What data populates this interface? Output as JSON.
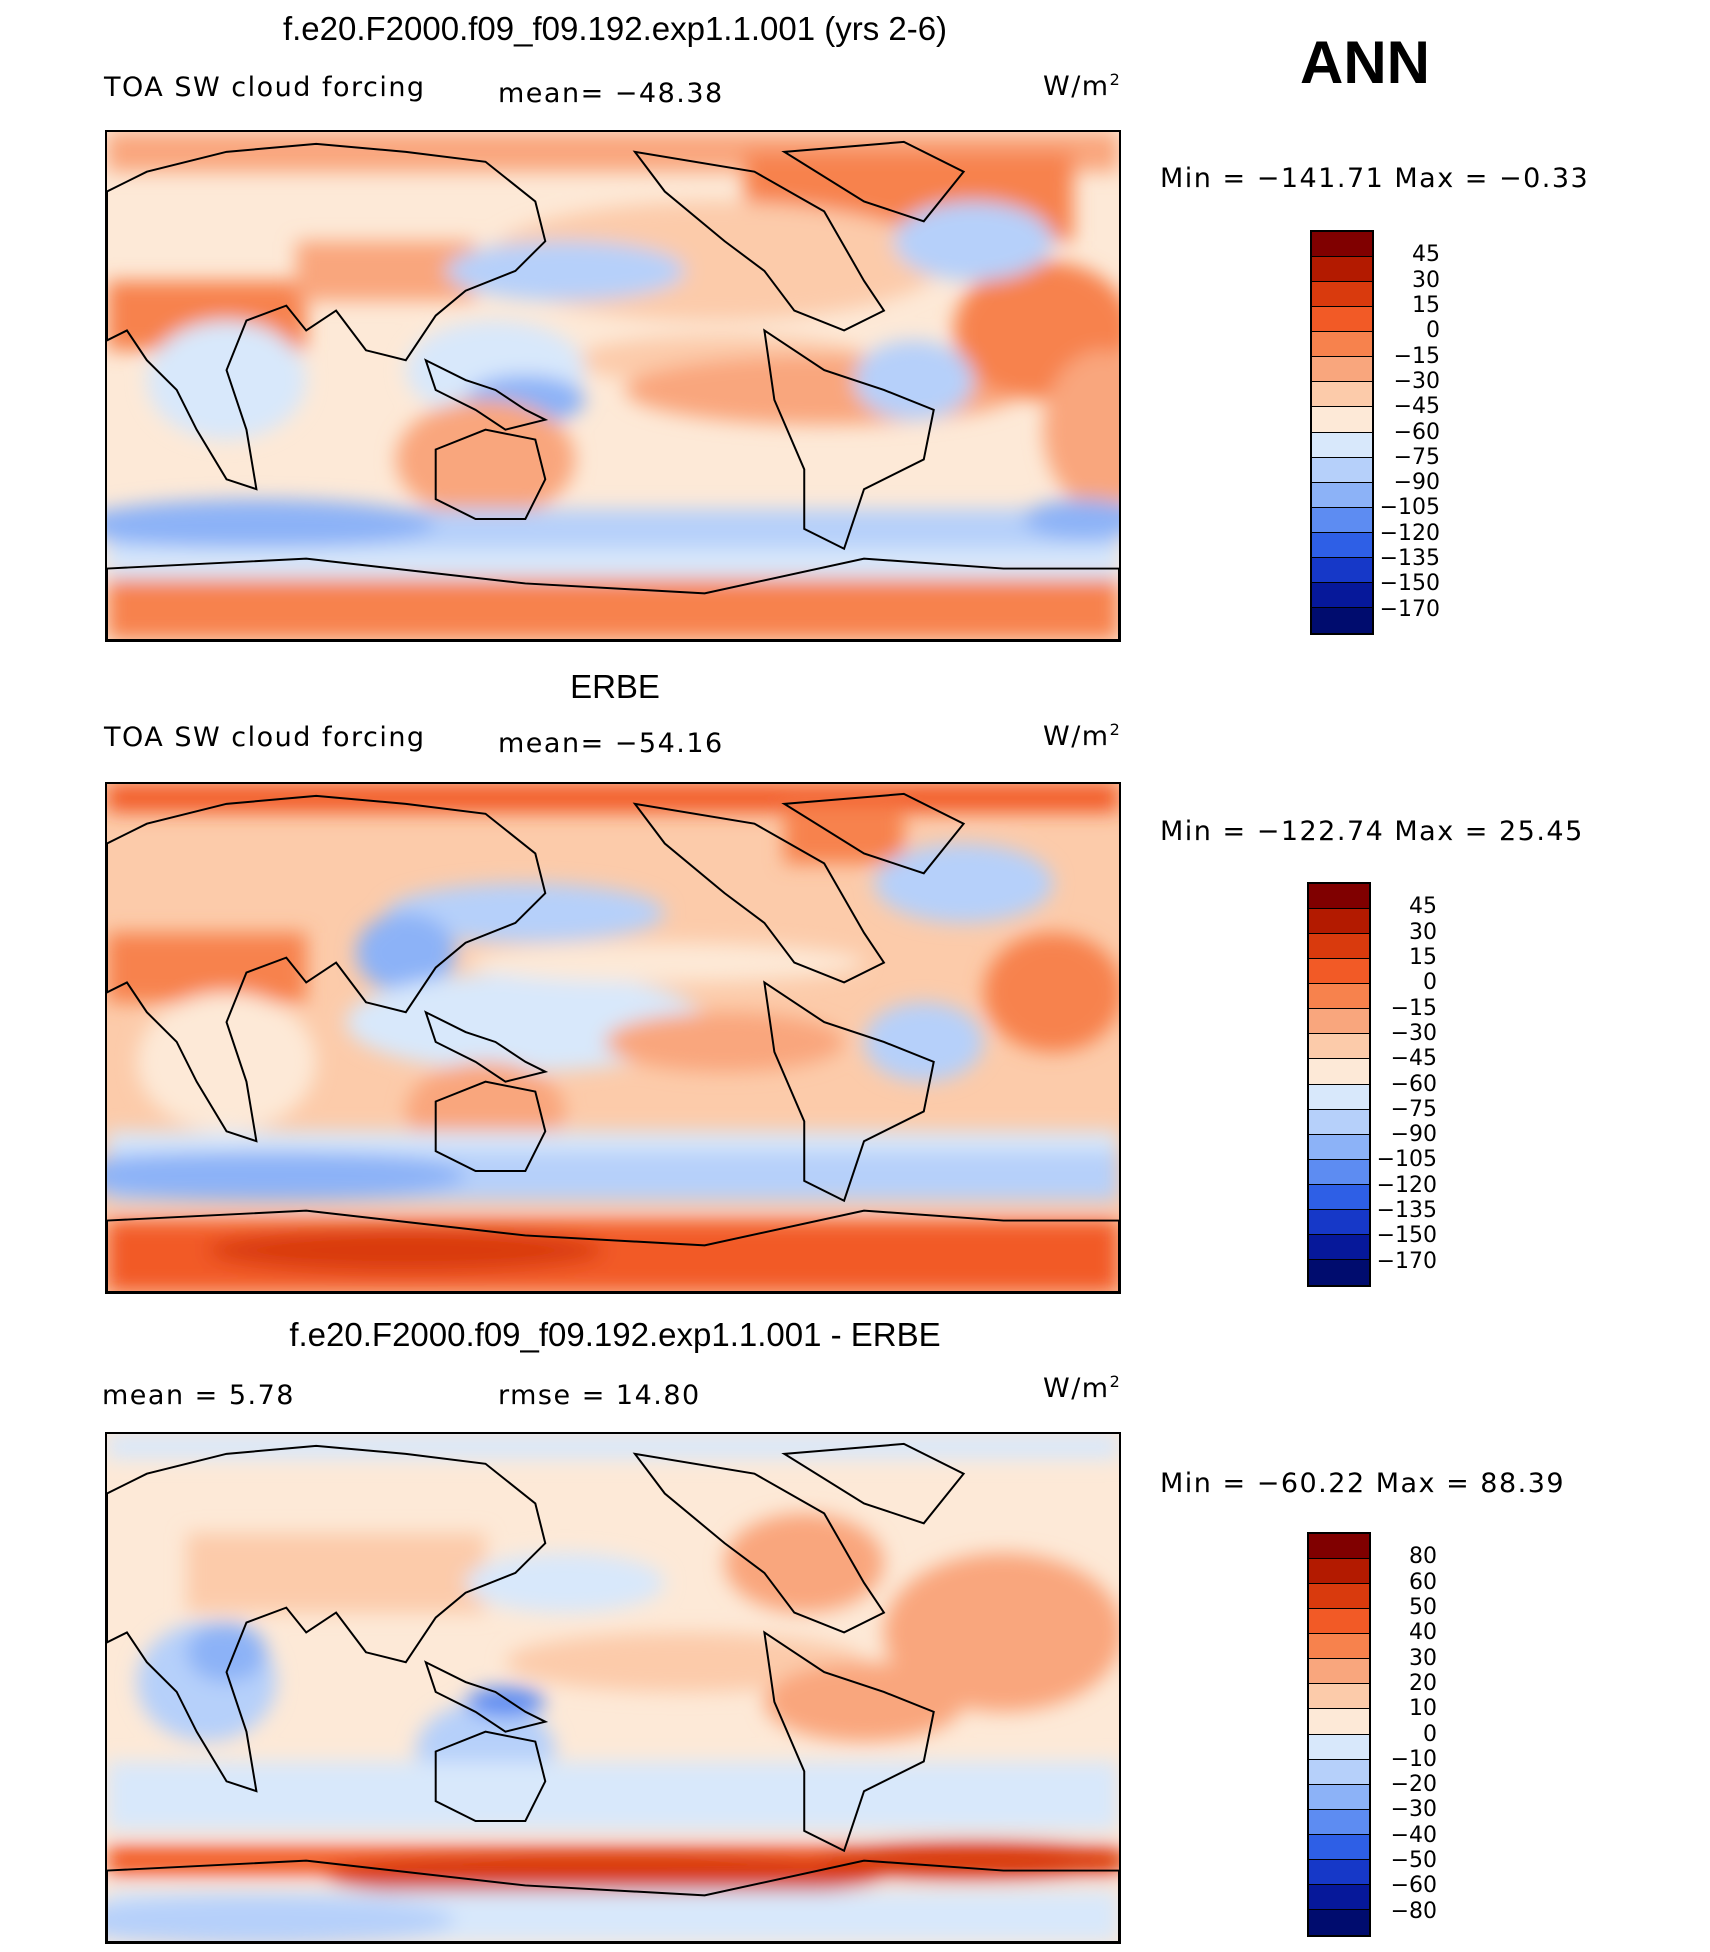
{
  "season": "ANN",
  "units": "W/m",
  "units_sup": "2",
  "panels": [
    {
      "title": "f.e20.F2000.f09_f09.192.exp1.1.001 (yrs 2-6)",
      "left_label": "TOA SW cloud forcing",
      "stat_label": "mean= −48.38",
      "minmax": "Min  =  −141.71  Max  =    −0.33",
      "colorbar_labels": [
        "45",
        "30",
        "15",
        "0",
        "−15",
        "−30",
        "−45",
        "−60",
        "−75",
        "−90",
        "−105",
        "−120",
        "−135",
        "−150",
        "−170"
      ]
    },
    {
      "title": "ERBE",
      "left_label": "TOA SW cloud forcing",
      "stat_label": "mean= −54.16",
      "minmax": "Min  =  −122.74  Max  =    25.45",
      "colorbar_labels": [
        "45",
        "30",
        "15",
        "0",
        "−15",
        "−30",
        "−45",
        "−60",
        "−75",
        "−90",
        "−105",
        "−120",
        "−135",
        "−150",
        "−170"
      ]
    },
    {
      "title": "f.e20.F2000.f09_f09.192.exp1.1.001 - ERBE",
      "left_label": "mean  =     5.78",
      "stat_label": "rmse  =    14.80",
      "minmax": "Min  =  −60.22  Max  =    88.39",
      "colorbar_labels": [
        "80",
        "60",
        "50",
        "40",
        "30",
        "20",
        "10",
        "0",
        "−10",
        "−20",
        "−30",
        "−40",
        "−50",
        "−60",
        "−80"
      ]
    }
  ],
  "colorbar_colors": [
    "#800000",
    "#b31a00",
    "#d93a0d",
    "#f25a26",
    "#f7824d",
    "#f9a67d",
    "#fccbaa",
    "#fde9d7",
    "#d8e8fb",
    "#b6d0fa",
    "#8cb2f7",
    "#5d8cf2",
    "#2e5fe6",
    "#1638c8",
    "#06189a",
    "#000c6e"
  ]
}
